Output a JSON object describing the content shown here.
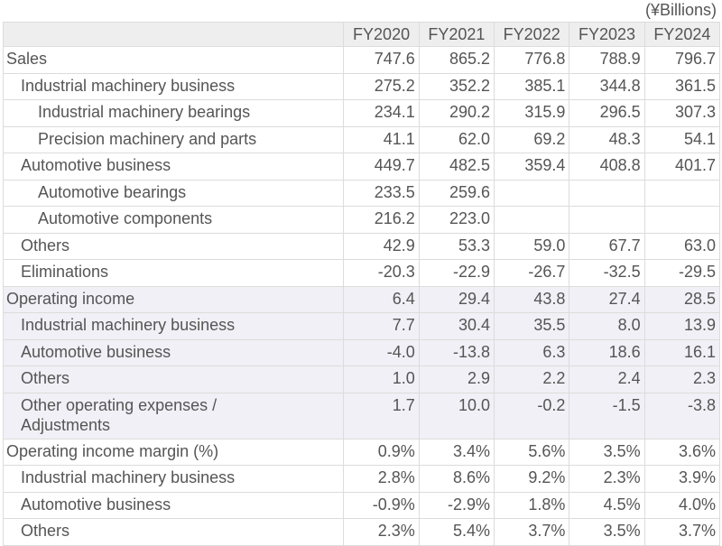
{
  "units": "(¥Billions)",
  "columns": [
    "FY2020",
    "FY2021",
    "FY2022",
    "FY2023",
    "FY2024"
  ],
  "rows": [
    {
      "label": "Sales",
      "level": 0,
      "shade": false,
      "values": [
        "747.6",
        "865.2",
        "776.8",
        "788.9",
        "796.7"
      ]
    },
    {
      "label": "Industrial machinery business",
      "level": 1,
      "shade": false,
      "values": [
        "275.2",
        "352.2",
        "385.1",
        "344.8",
        "361.5"
      ]
    },
    {
      "label": "Industrial machinery bearings",
      "level": 2,
      "shade": false,
      "values": [
        "234.1",
        "290.2",
        "315.9",
        "296.5",
        "307.3"
      ]
    },
    {
      "label": "Precision machinery and parts",
      "level": 2,
      "shade": false,
      "values": [
        "41.1",
        "62.0",
        "69.2",
        "48.3",
        "54.1"
      ]
    },
    {
      "label": "Automotive business",
      "level": 1,
      "shade": false,
      "values": [
        "449.7",
        "482.5",
        "359.4",
        "408.8",
        "401.7"
      ]
    },
    {
      "label": "Automotive bearings",
      "level": 2,
      "shade": false,
      "values": [
        "233.5",
        "259.6",
        "",
        "",
        ""
      ]
    },
    {
      "label": "Automotive components",
      "level": 2,
      "shade": false,
      "values": [
        "216.2",
        "223.0",
        "",
        "",
        ""
      ]
    },
    {
      "label": "Others",
      "level": 1,
      "shade": false,
      "values": [
        "42.9",
        "53.3",
        "59.0",
        "67.7",
        "63.0"
      ]
    },
    {
      "label": "Eliminations",
      "level": 1,
      "shade": false,
      "values": [
        "-20.3",
        "-22.9",
        "-26.7",
        "-32.5",
        "-29.5"
      ]
    },
    {
      "label": "Operating income",
      "level": 0,
      "shade": true,
      "values": [
        "6.4",
        "29.4",
        "43.8",
        "27.4",
        "28.5"
      ]
    },
    {
      "label": "Industrial machinery business",
      "level": 1,
      "shade": true,
      "values": [
        "7.7",
        "30.4",
        "35.5",
        "8.0",
        "13.9"
      ]
    },
    {
      "label": "Automotive business",
      "level": 1,
      "shade": true,
      "values": [
        "-4.0",
        "-13.8",
        "6.3",
        "18.6",
        "16.1"
      ]
    },
    {
      "label": "Others",
      "level": 1,
      "shade": true,
      "values": [
        "1.0",
        "2.9",
        "2.2",
        "2.4",
        "2.3"
      ]
    },
    {
      "label": "Other operating expenses / Adjustments",
      "level": 1,
      "shade": true,
      "tall": true,
      "values": [
        "1.7",
        "10.0",
        "-0.2",
        "-1.5",
        "-3.8"
      ]
    },
    {
      "label": "Operating income margin (%)",
      "level": 0,
      "shade": false,
      "values": [
        "0.9%",
        "3.4%",
        "5.6%",
        "3.5%",
        "3.6%"
      ]
    },
    {
      "label": "Industrial machinery business",
      "level": 1,
      "shade": false,
      "values": [
        "2.8%",
        "8.6%",
        "9.2%",
        "2.3%",
        "3.9%"
      ]
    },
    {
      "label": "Automotive business",
      "level": 1,
      "shade": false,
      "values": [
        "-0.9%",
        "-2.9%",
        "1.8%",
        "4.5%",
        "4.0%"
      ]
    },
    {
      "label": "Others",
      "level": 1,
      "shade": false,
      "values": [
        "2.3%",
        "5.4%",
        "3.7%",
        "3.5%",
        "3.7%"
      ]
    }
  ]
}
